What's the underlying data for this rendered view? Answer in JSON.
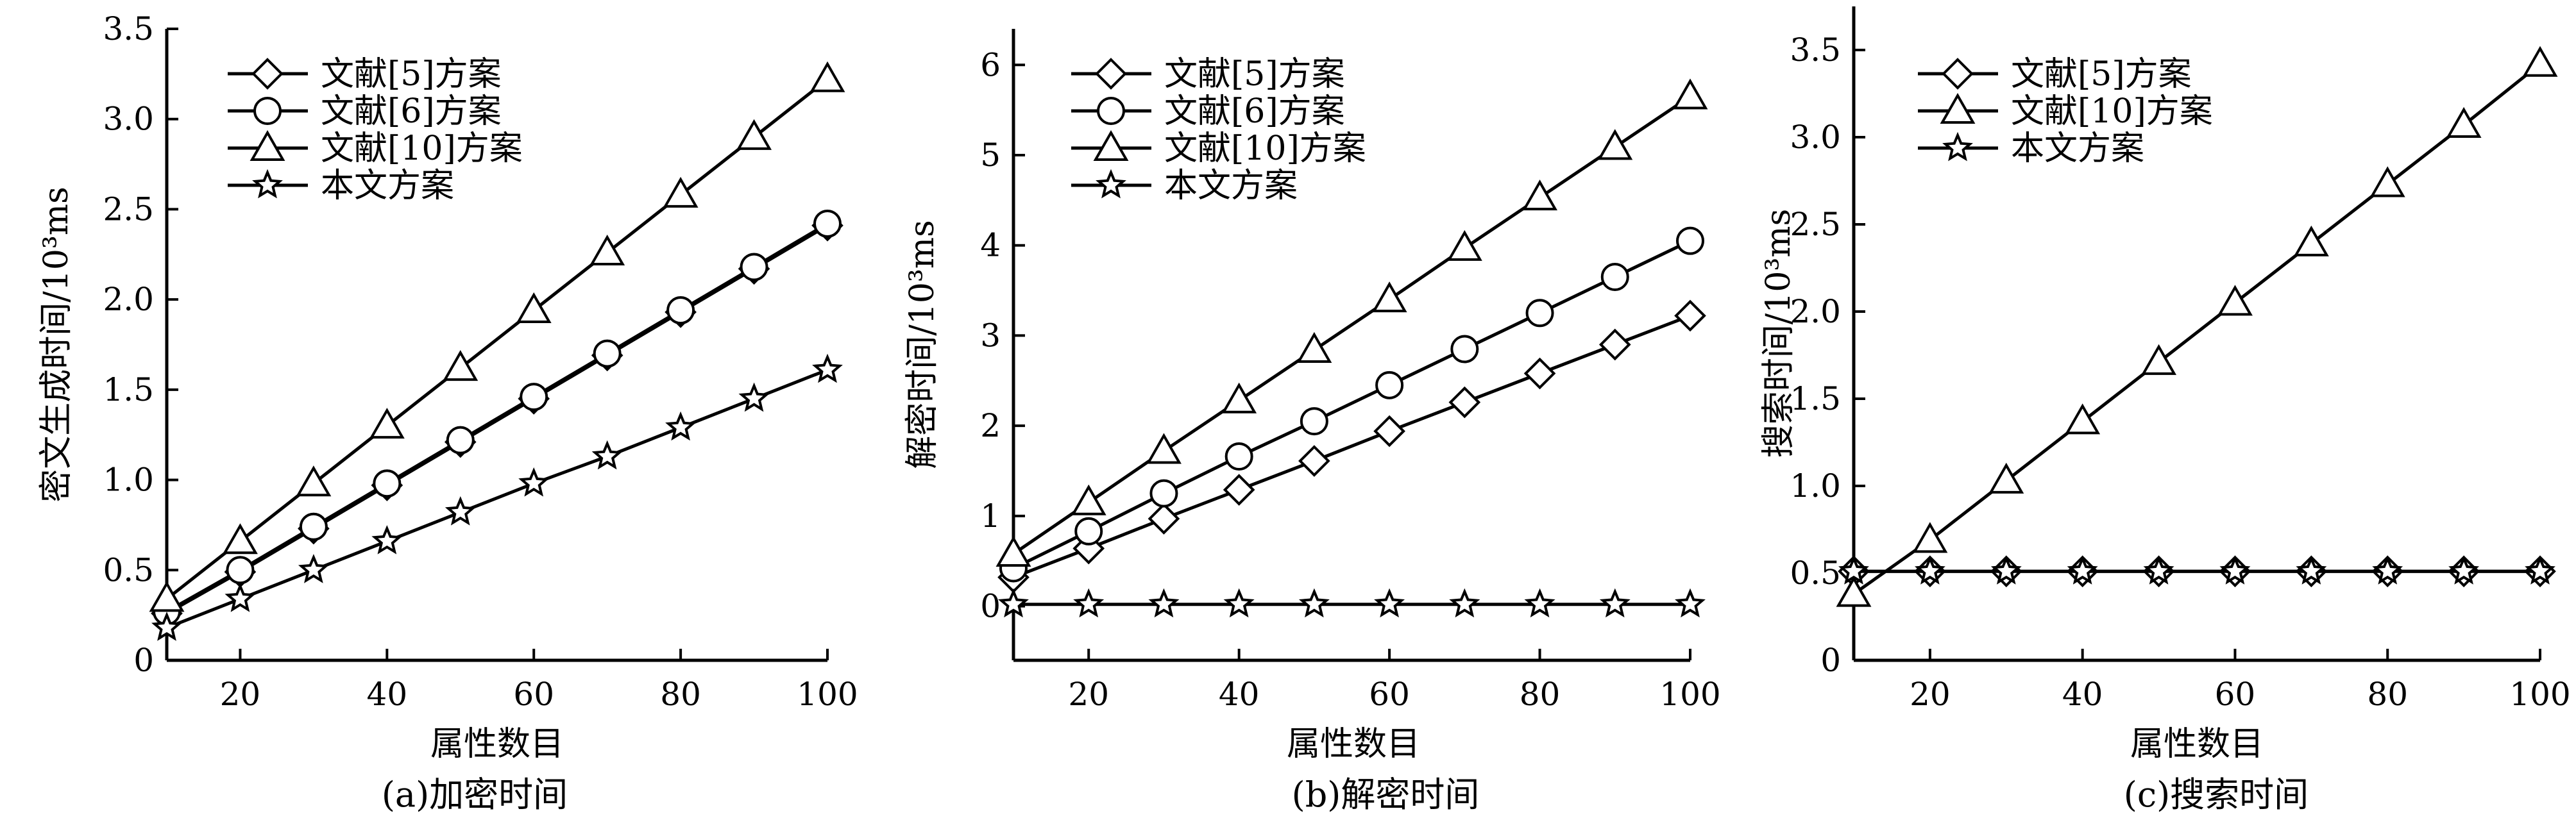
{
  "chart_data": [
    {
      "type": "line",
      "caption": "(a)加密时间",
      "xlabel": "属性数目",
      "ylabel": "密文生成时间/10³ms",
      "xlim": [
        10,
        100
      ],
      "ylim": [
        0,
        3.5
      ],
      "xticks": [
        20,
        40,
        60,
        80,
        100
      ],
      "yticks": [
        0,
        0.5,
        1.0,
        1.5,
        2.0,
        2.5,
        3.0,
        3.5
      ],
      "ytick_labels": [
        "0",
        "0.5",
        "1.0",
        "1.5",
        "2.0",
        "2.5",
        "3.0",
        "3.5"
      ],
      "legend_position": "top-left",
      "x": [
        10,
        20,
        30,
        40,
        50,
        60,
        70,
        80,
        90,
        100
      ],
      "series": [
        {
          "name": "文献[5]方案",
          "marker": "diamond",
          "values": [
            0.26,
            0.49,
            0.73,
            0.97,
            1.21,
            1.45,
            1.69,
            1.93,
            2.17,
            2.41
          ]
        },
        {
          "name": "文献[6]方案",
          "marker": "circle",
          "values": [
            0.27,
            0.5,
            0.74,
            0.98,
            1.22,
            1.46,
            1.7,
            1.94,
            2.18,
            2.42
          ]
        },
        {
          "name": "文献[10]方案",
          "marker": "triangle",
          "values": [
            0.34,
            0.66,
            0.98,
            1.3,
            1.62,
            1.94,
            2.26,
            2.58,
            2.9,
            3.22
          ]
        },
        {
          "name": "本文方案",
          "marker": "star",
          "values": [
            0.18,
            0.34,
            0.5,
            0.66,
            0.82,
            0.98,
            1.13,
            1.29,
            1.45,
            1.61
          ]
        }
      ]
    },
    {
      "type": "line",
      "caption": "(b)解密时间",
      "xlabel": "属性数目",
      "ylabel": "解密时间/10³ms",
      "xlim": [
        10,
        100
      ],
      "ylim": [
        -0.6,
        6.4
      ],
      "xticks": [
        20,
        40,
        60,
        80,
        100
      ],
      "yticks": [
        0,
        1,
        2,
        3,
        4,
        5,
        6
      ],
      "ytick_labels": [
        "0",
        "1",
        "2",
        "3",
        "4",
        "5",
        "6"
      ],
      "legend_position": "top-left",
      "x": [
        10,
        20,
        30,
        40,
        50,
        60,
        70,
        80,
        90,
        100
      ],
      "series": [
        {
          "name": "文献[5]方案",
          "marker": "diamond",
          "values": [
            0.32,
            0.64,
            0.97,
            1.29,
            1.61,
            1.94,
            2.26,
            2.58,
            2.9,
            3.22
          ]
        },
        {
          "name": "文献[6]方案",
          "marker": "circle",
          "values": [
            0.42,
            0.83,
            1.25,
            1.66,
            2.05,
            2.45,
            2.85,
            3.25,
            3.65,
            4.05
          ]
        },
        {
          "name": "文献[10]方案",
          "marker": "triangle",
          "values": [
            0.58,
            1.15,
            1.72,
            2.28,
            2.84,
            3.4,
            3.97,
            4.53,
            5.09,
            5.65
          ]
        },
        {
          "name": "本文方案",
          "marker": "star",
          "values": [
            0.02,
            0.02,
            0.02,
            0.02,
            0.02,
            0.02,
            0.02,
            0.02,
            0.02,
            0.02
          ]
        }
      ]
    },
    {
      "type": "line",
      "caption": "(c)搜索时间",
      "xlabel": "属性数目",
      "ylabel": "搜索时间/10³ms",
      "xlim": [
        10,
        100
      ],
      "ylim": [
        0,
        3.75
      ],
      "xticks": [
        20,
        40,
        60,
        80,
        100
      ],
      "yticks": [
        0,
        0.5,
        1.0,
        1.5,
        2.0,
        2.5,
        3.0,
        3.5
      ],
      "ytick_labels": [
        "0",
        "0.5",
        "1.0",
        "1.5",
        "2.0",
        "2.5",
        "3.0",
        "3.5"
      ],
      "legend_position": "top-left",
      "x": [
        10,
        20,
        30,
        40,
        50,
        60,
        70,
        80,
        90,
        100
      ],
      "series": [
        {
          "name": "文献[5]方案",
          "marker": "diamond",
          "values": [
            0.51,
            0.51,
            0.51,
            0.51,
            0.51,
            0.51,
            0.51,
            0.51,
            0.51,
            0.51
          ]
        },
        {
          "name": "文献[10]方案",
          "marker": "triangle",
          "values": [
            0.38,
            0.69,
            1.03,
            1.37,
            1.71,
            2.05,
            2.39,
            2.73,
            3.07,
            3.42
          ]
        },
        {
          "name": "本文方案",
          "marker": "star",
          "values": [
            0.51,
            0.51,
            0.51,
            0.51,
            0.51,
            0.51,
            0.51,
            0.51,
            0.51,
            0.51
          ]
        }
      ]
    }
  ]
}
